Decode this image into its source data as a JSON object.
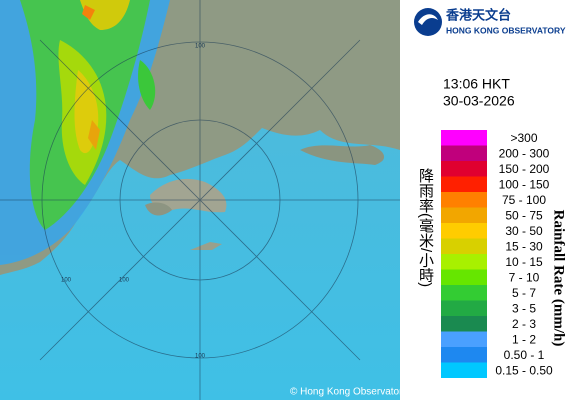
{
  "header": {
    "logo_chinese": "香港天文台",
    "logo_english": "HONG KONG OBSERVATORY"
  },
  "time": "13:06 HKT",
  "date": "30-03-2026",
  "legend": {
    "title_chinese": "降雨率(毫米/小時)",
    "title_english": "Rainfall Rate (mm/h)",
    "items": [
      {
        "label": ">300",
        "color": "#ff00ff"
      },
      {
        "label": "200 - 300",
        "color": "#c0007c"
      },
      {
        "label": "150 - 200",
        "color": "#e00030"
      },
      {
        "label": "100 - 150",
        "color": "#ff2000"
      },
      {
        "label": "75 - 100",
        "color": "#ff8000"
      },
      {
        "label": "50 - 75",
        "color": "#f2a600"
      },
      {
        "label": "30 - 50",
        "color": "#ffcc00"
      },
      {
        "label": "15 - 30",
        "color": "#d8d000"
      },
      {
        "label": "10 - 15",
        "color": "#a8f000"
      },
      {
        "label": "7 - 10",
        "color": "#66e600"
      },
      {
        "label": "5 - 7",
        "color": "#33cc33"
      },
      {
        "label": "3 - 5",
        "color": "#22aa44"
      },
      {
        "label": "2 - 3",
        "color": "#1a8a50"
      },
      {
        "label": "1 - 2",
        "color": "#4aa0ff"
      },
      {
        "label": "0.50 - 1",
        "color": "#1e88f0"
      },
      {
        "label": "0.15 - 0.50",
        "color": "#00c8ff"
      }
    ]
  },
  "map": {
    "ring_labels": [
      "100",
      "100",
      "100",
      "100"
    ],
    "copyright": "© Hong Kong Observatory"
  }
}
